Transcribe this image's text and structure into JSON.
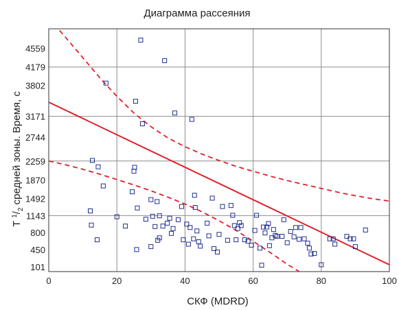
{
  "chart_data": {
    "type": "scatter",
    "title": "Диаграмма рассеяния",
    "xlabel": "СКФ (MDRD)",
    "ylabel": {
      "prefix": "T ",
      "sup": "1",
      "slash": "/",
      "sub": "2",
      "suffix": " средней зоны. Время, с"
    },
    "xlim": [
      0,
      100
    ],
    "ylim": [
      0,
      4960
    ],
    "grid": true,
    "x_ticks": [
      0,
      20,
      40,
      60,
      80,
      100
    ],
    "y_ticks": [
      101,
      450,
      800,
      1143,
      1492,
      1870,
      2259,
      2744,
      3171,
      3802,
      4179,
      4559
    ],
    "x_gridlines": [
      20,
      40,
      60,
      80
    ],
    "y_gridlines": [
      1143,
      2259,
      3171,
      4179
    ],
    "fit_line": {
      "x": [
        0,
        100
      ],
      "y": [
        3460,
        140
      ]
    },
    "upper_band": {
      "x": [
        0,
        5,
        10,
        15,
        20,
        25,
        30,
        35,
        40,
        45,
        50,
        55,
        60,
        65,
        70,
        75,
        80,
        85,
        90,
        95,
        100
      ],
      "y": [
        5180,
        4780,
        4370,
        3960,
        3580,
        3240,
        2960,
        2730,
        2550,
        2400,
        2270,
        2150,
        2050,
        1950,
        1860,
        1780,
        1700,
        1620,
        1550,
        1490,
        1440
      ]
    },
    "lower_band": {
      "x": [
        0,
        5,
        10,
        15,
        20,
        25,
        30,
        35,
        40,
        45,
        50,
        55,
        60,
        65,
        70,
        75,
        78
      ],
      "y": [
        2260,
        2180,
        2090,
        1990,
        1880,
        1770,
        1650,
        1520,
        1380,
        1220,
        1040,
        840,
        620,
        390,
        150,
        -60,
        -200
      ]
    },
    "points": [
      [
        12.2,
        1240
      ],
      [
        12.5,
        950
      ],
      [
        12.8,
        2270
      ],
      [
        14.2,
        650
      ],
      [
        14.5,
        2140
      ],
      [
        16,
        1750
      ],
      [
        16.8,
        3850
      ],
      [
        20,
        1120
      ],
      [
        22.5,
        930
      ],
      [
        24.5,
        1630
      ],
      [
        25,
        2050
      ],
      [
        25.2,
        2130
      ],
      [
        25.5,
        3480
      ],
      [
        25.8,
        450
      ],
      [
        26,
        1300
      ],
      [
        27,
        4730
      ],
      [
        27.5,
        3020
      ],
      [
        28.5,
        1070
      ],
      [
        30,
        1470
      ],
      [
        30,
        510
      ],
      [
        30.5,
        1130
      ],
      [
        31.2,
        920
      ],
      [
        31.8,
        1430
      ],
      [
        32,
        640
      ],
      [
        32.5,
        690
      ],
      [
        32.5,
        1140
      ],
      [
        33.5,
        930
      ],
      [
        34,
        4310
      ],
      [
        34.8,
        990
      ],
      [
        35.5,
        1090
      ],
      [
        36,
        780
      ],
      [
        36.5,
        880
      ],
      [
        37,
        3240
      ],
      [
        38,
        1060
      ],
      [
        39,
        1330
      ],
      [
        39.5,
        650
      ],
      [
        40.5,
        970
      ],
      [
        41,
        560
      ],
      [
        41.5,
        900
      ],
      [
        42,
        3110
      ],
      [
        42.5,
        670
      ],
      [
        42.8,
        1560
      ],
      [
        43,
        1310
      ],
      [
        43.5,
        830
      ],
      [
        44,
        610
      ],
      [
        44.5,
        520
      ],
      [
        46.5,
        990
      ],
      [
        47,
        730
      ],
      [
        48,
        1500
      ],
      [
        48.5,
        470
      ],
      [
        49.5,
        400
      ],
      [
        50,
        760
      ],
      [
        51,
        1330
      ],
      [
        52.5,
        640
      ],
      [
        53.5,
        1350
      ],
      [
        54,
        1150
      ],
      [
        54.5,
        940
      ],
      [
        55,
        650
      ],
      [
        55.5,
        880
      ],
      [
        56,
        1000
      ],
      [
        56.5,
        940
      ],
      [
        57.5,
        650
      ],
      [
        58.5,
        620
      ],
      [
        59.5,
        540
      ],
      [
        60.5,
        840
      ],
      [
        61,
        1150
      ],
      [
        62,
        480
      ],
      [
        62.5,
        130
      ],
      [
        63,
        910
      ],
      [
        63.5,
        790
      ],
      [
        64,
        910
      ],
      [
        64.5,
        980
      ],
      [
        64.8,
        530
      ],
      [
        65.5,
        690
      ],
      [
        66,
        860
      ],
      [
        66.5,
        740
      ],
      [
        67,
        720
      ],
      [
        68.5,
        720
      ],
      [
        69,
        1060
      ],
      [
        70,
        590
      ],
      [
        71,
        820
      ],
      [
        72,
        710
      ],
      [
        72.5,
        900
      ],
      [
        73.5,
        660
      ],
      [
        74,
        900
      ],
      [
        75,
        670
      ],
      [
        76,
        580
      ],
      [
        76.5,
        480
      ],
      [
        77,
        360
      ],
      [
        78,
        370
      ],
      [
        80,
        140
      ],
      [
        82.5,
        670
      ],
      [
        83.5,
        670
      ],
      [
        84,
        560
      ],
      [
        87.5,
        720
      ],
      [
        88.5,
        670
      ],
      [
        89.5,
        670
      ],
      [
        90,
        510
      ],
      [
        93,
        850
      ]
    ]
  }
}
